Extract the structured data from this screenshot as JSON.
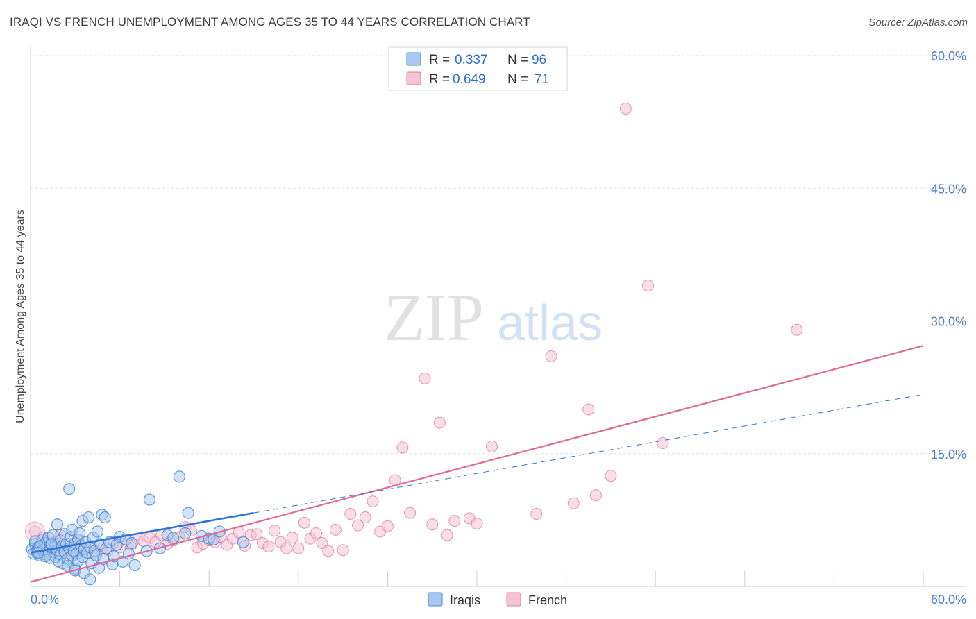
{
  "header": {
    "title": "IRAQI VS FRENCH UNEMPLOYMENT AMONG AGES 35 TO 44 YEARS CORRELATION CHART",
    "source": "Source: ZipAtlas.com"
  },
  "watermark": {
    "zip": "ZIP",
    "atlas": "atlas"
  },
  "colors": {
    "iraqis_fill": "#a8c8f0",
    "iraqis_stroke": "#4a86d0",
    "iraqis_line": "#2b74d6",
    "french_fill": "#f6c3d2",
    "french_stroke": "#e07ba0",
    "french_line": "#e06a97",
    "tick_label": "#4a7fcc",
    "grid": "#e3e3e3"
  },
  "chart_data": {
    "type": "scatter",
    "title": "IRAQI VS FRENCH UNEMPLOYMENT AMONG AGES 35 TO 44 YEARS CORRELATION CHART",
    "xlabel": "",
    "ylabel": "Unemployment Among Ages 35 to 44 years",
    "xlim": [
      0,
      60
    ],
    "ylim": [
      0,
      63
    ],
    "x_tick_labels": [
      "0.0%",
      "60.0%"
    ],
    "y_ticks": [
      15,
      30,
      45,
      60
    ],
    "y_tick_labels": [
      "15.0%",
      "30.0%",
      "45.0%",
      "60.0%"
    ],
    "grid": true,
    "legend_position": "top-center",
    "stats": [
      {
        "r_label": "R =",
        "r_value": "0.337",
        "n_label": "N =",
        "n_value": "96"
      },
      {
        "r_label": "R =",
        "r_value": "0.649",
        "n_label": "N =",
        "n_value": "71"
      }
    ],
    "series": [
      {
        "name": "Iraqis",
        "trend": {
          "x0": 0,
          "y0": 3.8,
          "x_solid_end": 15,
          "y_solid_end": 8.3,
          "x1": 60,
          "y1": 21.7
        },
        "points": [
          [
            0.1,
            4.2
          ],
          [
            0.2,
            3.7
          ],
          [
            0.3,
            4.8
          ],
          [
            0.3,
            5.1
          ],
          [
            0.4,
            3.9
          ],
          [
            0.5,
            4.4
          ],
          [
            0.5,
            4.0
          ],
          [
            0.6,
            3.5
          ],
          [
            0.7,
            4.6
          ],
          [
            0.8,
            5.3
          ],
          [
            0.8,
            4.1
          ],
          [
            0.9,
            3.8
          ],
          [
            1.0,
            4.9
          ],
          [
            1.0,
            4.3
          ],
          [
            1.1,
            3.6
          ],
          [
            1.2,
            5.5
          ],
          [
            1.2,
            4.0
          ],
          [
            1.3,
            3.2
          ],
          [
            1.4,
            4.7
          ],
          [
            1.5,
            3.9
          ],
          [
            1.5,
            5.8
          ],
          [
            1.6,
            4.4
          ],
          [
            1.7,
            3.3
          ],
          [
            1.8,
            7.0
          ],
          [
            1.8,
            4.1
          ],
          [
            1.9,
            2.8
          ],
          [
            2.0,
            5.2
          ],
          [
            2.0,
            3.6
          ],
          [
            2.1,
            4.5
          ],
          [
            2.2,
            2.6
          ],
          [
            2.3,
            5.9
          ],
          [
            2.3,
            3.9
          ],
          [
            2.4,
            4.8
          ],
          [
            2.5,
            3.1
          ],
          [
            2.5,
            2.3
          ],
          [
            2.6,
            4.3
          ],
          [
            2.7,
            5.6
          ],
          [
            2.8,
            3.5
          ],
          [
            2.8,
            6.4
          ],
          [
            2.9,
            4.0
          ],
          [
            3.0,
            2.0
          ],
          [
            3.0,
            4.9
          ],
          [
            3.1,
            3.7
          ],
          [
            3.2,
            5.3
          ],
          [
            3.2,
            2.9
          ],
          [
            3.3,
            6.0
          ],
          [
            3.4,
            4.6
          ],
          [
            3.5,
            3.3
          ],
          [
            3.5,
            7.4
          ],
          [
            3.6,
            4.2
          ],
          [
            3.7,
            5.0
          ],
          [
            3.8,
            3.8
          ],
          [
            3.9,
            7.8
          ],
          [
            4.0,
            4.4
          ],
          [
            4.1,
            2.6
          ],
          [
            4.2,
            5.5
          ],
          [
            4.3,
            4.0
          ],
          [
            4.4,
            3.5
          ],
          [
            4.5,
            6.2
          ],
          [
            4.6,
            2.1
          ],
          [
            4.7,
            4.8
          ],
          [
            4.8,
            8.1
          ],
          [
            4.9,
            3.1
          ],
          [
            5.0,
            7.8
          ],
          [
            5.1,
            4.3
          ],
          [
            5.3,
            5.0
          ],
          [
            5.5,
            2.5
          ],
          [
            5.6,
            3.4
          ],
          [
            5.8,
            4.7
          ],
          [
            6.0,
            5.6
          ],
          [
            6.2,
            2.8
          ],
          [
            6.4,
            5.3
          ],
          [
            6.6,
            3.7
          ],
          [
            6.8,
            4.9
          ],
          [
            7.0,
            2.4
          ],
          [
            0.6,
            4.5
          ],
          [
            1.0,
            3.4
          ],
          [
            1.4,
            4.8
          ],
          [
            2.6,
            11.0
          ],
          [
            3.0,
            1.8
          ],
          [
            3.6,
            1.5
          ],
          [
            4.0,
            0.8
          ],
          [
            7.8,
            4.0
          ],
          [
            8.0,
            9.8
          ],
          [
            8.7,
            4.3
          ],
          [
            9.2,
            5.8
          ],
          [
            9.6,
            5.5
          ],
          [
            10.0,
            12.4
          ],
          [
            10.4,
            6.0
          ],
          [
            10.6,
            8.3
          ],
          [
            11.5,
            5.7
          ],
          [
            12.0,
            5.4
          ],
          [
            12.3,
            5.3
          ],
          [
            12.7,
            6.2
          ],
          [
            14.3,
            5.0
          ],
          [
            0.5,
            3.8
          ]
        ]
      },
      {
        "name": "French",
        "trend": {
          "x0": 0,
          "y0": 0.5,
          "x1": 60,
          "y1": 27.2
        },
        "points": [
          [
            0.3,
            6.2
          ],
          [
            0.8,
            5.5
          ],
          [
            1.2,
            4.6
          ],
          [
            1.6,
            5.0
          ],
          [
            2.0,
            5.8
          ],
          [
            2.4,
            4.2
          ],
          [
            2.8,
            3.8
          ],
          [
            3.2,
            5.2
          ],
          [
            3.6,
            4.0
          ],
          [
            4.0,
            4.5
          ],
          [
            4.4,
            3.9
          ],
          [
            4.8,
            4.3
          ],
          [
            5.2,
            4.1
          ],
          [
            5.6,
            5.0
          ],
          [
            6.0,
            4.4
          ],
          [
            6.4,
            5.3
          ],
          [
            6.8,
            4.7
          ],
          [
            7.2,
            5.4
          ],
          [
            7.6,
            5.1
          ],
          [
            8.0,
            5.5
          ],
          [
            8.4,
            5.0
          ],
          [
            8.8,
            5.8
          ],
          [
            9.2,
            4.8
          ],
          [
            9.6,
            5.2
          ],
          [
            10.0,
            5.6
          ],
          [
            10.4,
            6.7
          ],
          [
            10.8,
            6.3
          ],
          [
            11.2,
            4.4
          ],
          [
            11.6,
            4.8
          ],
          [
            12.0,
            5.2
          ],
          [
            12.4,
            5.0
          ],
          [
            12.8,
            5.6
          ],
          [
            13.2,
            4.7
          ],
          [
            13.6,
            5.4
          ],
          [
            14.0,
            6.1
          ],
          [
            14.4,
            4.6
          ],
          [
            14.8,
            5.8
          ],
          [
            15.2,
            5.9
          ],
          [
            15.6,
            4.9
          ],
          [
            16.0,
            4.5
          ],
          [
            16.4,
            6.3
          ],
          [
            16.8,
            5.0
          ],
          [
            17.2,
            4.3
          ],
          [
            17.6,
            5.5
          ],
          [
            18.0,
            4.3
          ],
          [
            18.4,
            7.2
          ],
          [
            18.8,
            5.4
          ],
          [
            19.2,
            6.0
          ],
          [
            19.6,
            4.9
          ],
          [
            20.0,
            4.0
          ],
          [
            20.5,
            6.4
          ],
          [
            21.0,
            4.1
          ],
          [
            21.5,
            8.2
          ],
          [
            22.0,
            6.9
          ],
          [
            22.5,
            7.8
          ],
          [
            23.0,
            9.6
          ],
          [
            23.5,
            6.2
          ],
          [
            24.0,
            6.8
          ],
          [
            24.5,
            12.0
          ],
          [
            25.0,
            15.7
          ],
          [
            25.5,
            8.3
          ],
          [
            26.5,
            23.5
          ],
          [
            27.0,
            7.0
          ],
          [
            27.5,
            18.5
          ],
          [
            28.0,
            5.8
          ],
          [
            28.5,
            7.4
          ],
          [
            29.5,
            7.7
          ],
          [
            30.0,
            7.1
          ],
          [
            31.0,
            15.8
          ],
          [
            34.0,
            8.2
          ],
          [
            35.0,
            26.0
          ]
        ],
        "extra_points": [
          [
            36.5,
            9.4
          ],
          [
            37.5,
            20.0
          ],
          [
            39.0,
            12.5
          ],
          [
            40.0,
            54.0
          ],
          [
            41.5,
            34.0
          ],
          [
            42.5,
            16.2
          ],
          [
            51.5,
            29.0
          ],
          [
            38.0,
            10.3
          ]
        ]
      }
    ]
  },
  "legend_bottom": [
    {
      "label": "Iraqis"
    },
    {
      "label": "French"
    }
  ]
}
